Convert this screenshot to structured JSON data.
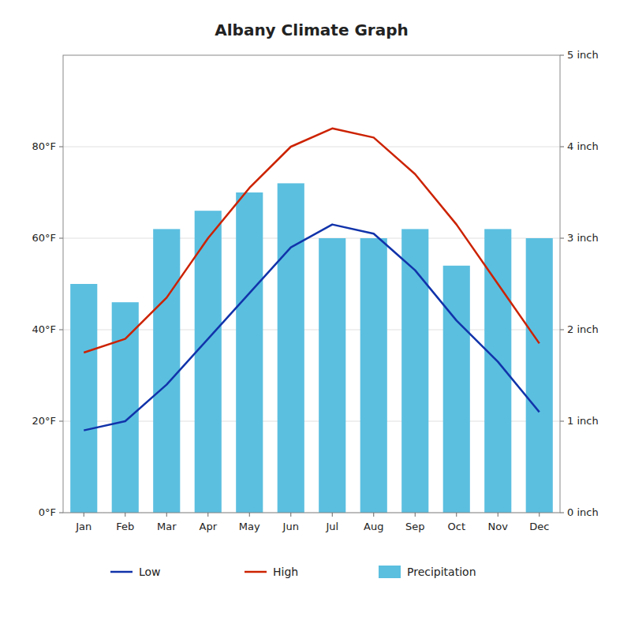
{
  "chart_data": {
    "type": "bar",
    "title": "Albany Climate Graph",
    "categories": [
      "Jan",
      "Feb",
      "Mar",
      "Apr",
      "May",
      "Jun",
      "Jul",
      "Aug",
      "Sep",
      "Oct",
      "Nov",
      "Dec"
    ],
    "series": [
      {
        "name": "Low",
        "type": "line",
        "color": "#1133aa",
        "values": [
          18,
          20,
          28,
          38,
          48,
          58,
          63,
          61,
          53,
          42,
          33,
          22
        ]
      },
      {
        "name": "High",
        "type": "line",
        "color": "#cc2200",
        "values": [
          35,
          38,
          47,
          60,
          71,
          80,
          84,
          82,
          74,
          63,
          50,
          37
        ]
      },
      {
        "name": "Precipitation",
        "type": "bar",
        "axis": "y2",
        "color": "#5bbfe0",
        "values": [
          2.5,
          2.3,
          3.1,
          3.3,
          3.5,
          3.6,
          3.0,
          3.0,
          3.1,
          2.7,
          3.1,
          3.0
        ]
      }
    ],
    "ylim": [
      0,
      100
    ],
    "yticks": [
      {
        "value": 0,
        "label": "0°F"
      },
      {
        "value": 20,
        "label": "20°F"
      },
      {
        "value": 40,
        "label": "40°F"
      },
      {
        "value": 60,
        "label": "60°F"
      },
      {
        "value": 80,
        "label": "80°F"
      }
    ],
    "y2lim": [
      0,
      5
    ],
    "y2ticks": [
      {
        "value": 0,
        "label": "0 inch"
      },
      {
        "value": 1,
        "label": "1 inch"
      },
      {
        "value": 2,
        "label": "2 inch"
      },
      {
        "value": 3,
        "label": "3 inch"
      },
      {
        "value": 4,
        "label": "4 inch"
      },
      {
        "value": 5,
        "label": "5 inch"
      }
    ],
    "grid": true,
    "legend": "bottom"
  }
}
